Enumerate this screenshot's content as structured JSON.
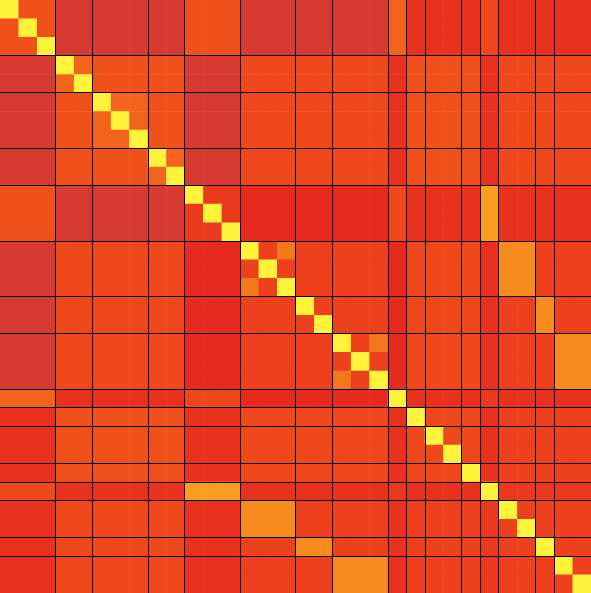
{
  "chart_data": {
    "type": "heatmap",
    "tick_labels": false,
    "zlim": [
      0,
      1
    ],
    "blocks": [
      3,
      2,
      3,
      2,
      3,
      3,
      2,
      3,
      1,
      1,
      2,
      1,
      1,
      2,
      1,
      2
    ],
    "cells": [
      [
        1,
        0.5,
        0.5,
        0.2,
        0.2,
        0.2,
        0.2,
        0.2,
        0.2,
        0.2,
        0.5,
        0.5,
        0.5,
        0.2,
        0.2,
        0.2,
        0.2,
        0.2,
        0.2,
        0.2,
        0.2,
        0.55,
        0.3,
        0.3,
        0.3,
        0.3,
        0.45,
        0.3,
        0.3,
        0.3,
        0.3,
        0.3
      ],
      [
        0.5,
        1,
        0.5,
        0.2,
        0.2,
        0.2,
        0.2,
        0.2,
        0.2,
        0.2,
        0.5,
        0.5,
        0.5,
        0.2,
        0.2,
        0.2,
        0.2,
        0.2,
        0.2,
        0.2,
        0.2,
        0.55,
        0.3,
        0.3,
        0.3,
        0.3,
        0.45,
        0.3,
        0.3,
        0.3,
        0.3,
        0.3
      ],
      [
        0.5,
        0.5,
        1,
        0.2,
        0.2,
        0.2,
        0.2,
        0.2,
        0.2,
        0.2,
        0.5,
        0.5,
        0.5,
        0.2,
        0.2,
        0.2,
        0.2,
        0.2,
        0.2,
        0.2,
        0.2,
        0.55,
        0.3,
        0.3,
        0.3,
        0.3,
        0.45,
        0.3,
        0.3,
        0.3,
        0.3,
        0.3
      ],
      [
        0.2,
        0.2,
        0.2,
        1,
        0.55,
        0.5,
        0.5,
        0.5,
        0.5,
        0.5,
        0.2,
        0.2,
        0.2,
        0.45,
        0.45,
        0.45,
        0.45,
        0.45,
        0.45,
        0.45,
        0.45,
        0.3,
        0.5,
        0.5,
        0.5,
        0.5,
        0.3,
        0.45,
        0.45,
        0.45,
        0.45,
        0.45
      ],
      [
        0.2,
        0.2,
        0.2,
        0.55,
        1,
        0.5,
        0.5,
        0.5,
        0.5,
        0.5,
        0.2,
        0.2,
        0.2,
        0.45,
        0.45,
        0.45,
        0.45,
        0.45,
        0.45,
        0.45,
        0.45,
        0.3,
        0.5,
        0.5,
        0.5,
        0.5,
        0.3,
        0.45,
        0.45,
        0.45,
        0.45,
        0.45
      ],
      [
        0.2,
        0.2,
        0.2,
        0.5,
        0.5,
        1,
        0.55,
        0.55,
        0.5,
        0.5,
        0.2,
        0.2,
        0.2,
        0.45,
        0.45,
        0.45,
        0.45,
        0.45,
        0.45,
        0.45,
        0.45,
        0.3,
        0.5,
        0.5,
        0.5,
        0.5,
        0.3,
        0.45,
        0.45,
        0.45,
        0.45,
        0.45
      ],
      [
        0.2,
        0.2,
        0.2,
        0.5,
        0.5,
        0.55,
        1,
        0.55,
        0.5,
        0.5,
        0.2,
        0.2,
        0.2,
        0.45,
        0.45,
        0.45,
        0.45,
        0.45,
        0.45,
        0.45,
        0.45,
        0.3,
        0.5,
        0.5,
        0.5,
        0.5,
        0.3,
        0.45,
        0.45,
        0.45,
        0.45,
        0.45
      ],
      [
        0.2,
        0.2,
        0.2,
        0.5,
        0.5,
        0.55,
        0.55,
        1,
        0.5,
        0.5,
        0.2,
        0.2,
        0.2,
        0.45,
        0.45,
        0.45,
        0.45,
        0.45,
        0.45,
        0.45,
        0.45,
        0.3,
        0.5,
        0.5,
        0.5,
        0.5,
        0.3,
        0.45,
        0.45,
        0.45,
        0.45,
        0.45
      ],
      [
        0.2,
        0.2,
        0.2,
        0.5,
        0.5,
        0.5,
        0.5,
        0.5,
        1,
        0.55,
        0.2,
        0.2,
        0.2,
        0.45,
        0.45,
        0.45,
        0.45,
        0.45,
        0.45,
        0.45,
        0.45,
        0.3,
        0.5,
        0.5,
        0.5,
        0.5,
        0.3,
        0.45,
        0.45,
        0.45,
        0.45,
        0.45
      ],
      [
        0.2,
        0.2,
        0.2,
        0.5,
        0.5,
        0.5,
        0.5,
        0.5,
        0.55,
        1,
        0.2,
        0.2,
        0.2,
        0.45,
        0.45,
        0.45,
        0.45,
        0.45,
        0.45,
        0.45,
        0.45,
        0.3,
        0.5,
        0.5,
        0.5,
        0.5,
        0.3,
        0.45,
        0.45,
        0.45,
        0.45,
        0.45
      ],
      [
        0.5,
        0.5,
        0.5,
        0.2,
        0.2,
        0.2,
        0.2,
        0.2,
        0.2,
        0.2,
        1,
        0.35,
        0.35,
        0.25,
        0.25,
        0.25,
        0.25,
        0.25,
        0.25,
        0.25,
        0.25,
        0.45,
        0.3,
        0.3,
        0.3,
        0.3,
        0.7,
        0.3,
        0.3,
        0.3,
        0.3,
        0.3
      ],
      [
        0.5,
        0.5,
        0.5,
        0.2,
        0.2,
        0.2,
        0.2,
        0.2,
        0.2,
        0.2,
        0.35,
        1,
        0.35,
        0.25,
        0.25,
        0.25,
        0.25,
        0.25,
        0.25,
        0.25,
        0.25,
        0.45,
        0.3,
        0.3,
        0.3,
        0.3,
        0.7,
        0.3,
        0.3,
        0.3,
        0.3,
        0.3
      ],
      [
        0.5,
        0.5,
        0.5,
        0.2,
        0.2,
        0.2,
        0.2,
        0.2,
        0.2,
        0.2,
        0.35,
        0.35,
        1,
        0.25,
        0.25,
        0.25,
        0.25,
        0.25,
        0.25,
        0.25,
        0.25,
        0.45,
        0.3,
        0.3,
        0.3,
        0.3,
        0.7,
        0.3,
        0.3,
        0.3,
        0.3,
        0.3
      ],
      [
        0.2,
        0.2,
        0.2,
        0.45,
        0.45,
        0.45,
        0.45,
        0.45,
        0.45,
        0.45,
        0.25,
        0.25,
        0.25,
        1,
        0.4,
        0.6,
        0.4,
        0.4,
        0.4,
        0.4,
        0.4,
        0.25,
        0.45,
        0.45,
        0.45,
        0.45,
        0.3,
        0.65,
        0.65,
        0.4,
        0.4,
        0.4
      ],
      [
        0.2,
        0.2,
        0.2,
        0.45,
        0.45,
        0.45,
        0.45,
        0.45,
        0.45,
        0.45,
        0.25,
        0.25,
        0.25,
        0.4,
        1,
        0.4,
        0.4,
        0.4,
        0.4,
        0.4,
        0.4,
        0.25,
        0.45,
        0.45,
        0.45,
        0.45,
        0.3,
        0.65,
        0.65,
        0.4,
        0.4,
        0.4
      ],
      [
        0.2,
        0.2,
        0.2,
        0.45,
        0.45,
        0.45,
        0.45,
        0.45,
        0.45,
        0.45,
        0.25,
        0.25,
        0.25,
        0.6,
        0.4,
        1,
        0.4,
        0.4,
        0.4,
        0.4,
        0.4,
        0.25,
        0.45,
        0.45,
        0.45,
        0.45,
        0.3,
        0.65,
        0.65,
        0.4,
        0.4,
        0.4
      ],
      [
        0.2,
        0.2,
        0.2,
        0.45,
        0.45,
        0.45,
        0.45,
        0.45,
        0.45,
        0.45,
        0.25,
        0.25,
        0.25,
        0.4,
        0.4,
        0.4,
        1,
        0.4,
        0.4,
        0.4,
        0.4,
        0.25,
        0.45,
        0.45,
        0.45,
        0.45,
        0.3,
        0.4,
        0.4,
        0.65,
        0.4,
        0.4
      ],
      [
        0.2,
        0.2,
        0.2,
        0.45,
        0.45,
        0.45,
        0.45,
        0.45,
        0.45,
        0.45,
        0.25,
        0.25,
        0.25,
        0.4,
        0.4,
        0.4,
        0.4,
        1,
        0.4,
        0.4,
        0.4,
        0.25,
        0.45,
        0.45,
        0.45,
        0.45,
        0.3,
        0.4,
        0.4,
        0.65,
        0.4,
        0.4
      ],
      [
        0.2,
        0.2,
        0.2,
        0.45,
        0.45,
        0.45,
        0.45,
        0.45,
        0.45,
        0.45,
        0.25,
        0.25,
        0.25,
        0.4,
        0.4,
        0.4,
        0.4,
        0.4,
        1,
        0.4,
        0.6,
        0.25,
        0.45,
        0.45,
        0.45,
        0.45,
        0.3,
        0.4,
        0.4,
        0.4,
        0.65,
        0.65
      ],
      [
        0.2,
        0.2,
        0.2,
        0.45,
        0.45,
        0.45,
        0.45,
        0.45,
        0.45,
        0.45,
        0.25,
        0.25,
        0.25,
        0.4,
        0.4,
        0.4,
        0.4,
        0.4,
        0.4,
        1,
        0.4,
        0.25,
        0.45,
        0.45,
        0.45,
        0.45,
        0.3,
        0.4,
        0.4,
        0.4,
        0.65,
        0.65
      ],
      [
        0.2,
        0.2,
        0.2,
        0.45,
        0.45,
        0.45,
        0.45,
        0.45,
        0.45,
        0.45,
        0.25,
        0.25,
        0.25,
        0.4,
        0.4,
        0.4,
        0.4,
        0.4,
        0.6,
        0.4,
        1,
        0.25,
        0.45,
        0.45,
        0.45,
        0.45,
        0.3,
        0.4,
        0.4,
        0.4,
        0.65,
        0.65
      ],
      [
        0.55,
        0.55,
        0.55,
        0.3,
        0.3,
        0.3,
        0.3,
        0.3,
        0.3,
        0.3,
        0.45,
        0.45,
        0.45,
        0.25,
        0.25,
        0.25,
        0.25,
        0.25,
        0.25,
        0.25,
        0.25,
        1,
        0.3,
        0.3,
        0.3,
        0.3,
        0.35,
        0.3,
        0.3,
        0.3,
        0.3,
        0.3
      ],
      [
        0.3,
        0.3,
        0.3,
        0.5,
        0.5,
        0.5,
        0.5,
        0.5,
        0.5,
        0.5,
        0.3,
        0.3,
        0.3,
        0.45,
        0.45,
        0.45,
        0.45,
        0.45,
        0.45,
        0.45,
        0.45,
        0.3,
        1,
        0.45,
        0.45,
        0.45,
        0.3,
        0.4,
        0.4,
        0.4,
        0.4,
        0.4
      ],
      [
        0.3,
        0.3,
        0.3,
        0.5,
        0.5,
        0.5,
        0.5,
        0.5,
        0.5,
        0.5,
        0.3,
        0.3,
        0.3,
        0.45,
        0.45,
        0.45,
        0.45,
        0.45,
        0.45,
        0.45,
        0.45,
        0.3,
        0.45,
        1,
        0.45,
        0.45,
        0.3,
        0.4,
        0.4,
        0.4,
        0.4,
        0.4
      ],
      [
        0.3,
        0.3,
        0.3,
        0.5,
        0.5,
        0.5,
        0.5,
        0.5,
        0.5,
        0.5,
        0.3,
        0.3,
        0.3,
        0.45,
        0.45,
        0.45,
        0.45,
        0.45,
        0.45,
        0.45,
        0.45,
        0.3,
        0.45,
        0.45,
        1,
        0.45,
        0.3,
        0.4,
        0.4,
        0.4,
        0.4,
        0.4
      ],
      [
        0.3,
        0.3,
        0.3,
        0.5,
        0.5,
        0.5,
        0.5,
        0.5,
        0.5,
        0.5,
        0.3,
        0.3,
        0.3,
        0.45,
        0.45,
        0.45,
        0.45,
        0.45,
        0.45,
        0.45,
        0.45,
        0.3,
        0.45,
        0.45,
        0.45,
        1,
        0.3,
        0.4,
        0.4,
        0.4,
        0.4,
        0.4
      ],
      [
        0.45,
        0.45,
        0.45,
        0.3,
        0.3,
        0.3,
        0.3,
        0.3,
        0.3,
        0.3,
        0.7,
        0.7,
        0.7,
        0.3,
        0.3,
        0.3,
        0.3,
        0.3,
        0.3,
        0.3,
        0.3,
        0.35,
        0.3,
        0.3,
        0.3,
        0.3,
        1,
        0.35,
        0.35,
        0.35,
        0.35,
        0.35
      ],
      [
        0.3,
        0.3,
        0.3,
        0.45,
        0.45,
        0.45,
        0.45,
        0.45,
        0.45,
        0.45,
        0.3,
        0.3,
        0.3,
        0.65,
        0.65,
        0.65,
        0.4,
        0.4,
        0.4,
        0.4,
        0.4,
        0.3,
        0.4,
        0.4,
        0.4,
        0.4,
        0.35,
        1,
        0.4,
        0.4,
        0.4,
        0.4
      ],
      [
        0.3,
        0.3,
        0.3,
        0.45,
        0.45,
        0.45,
        0.45,
        0.45,
        0.45,
        0.45,
        0.3,
        0.3,
        0.3,
        0.65,
        0.65,
        0.65,
        0.4,
        0.4,
        0.4,
        0.4,
        0.4,
        0.3,
        0.4,
        0.4,
        0.4,
        0.4,
        0.35,
        0.4,
        1,
        0.4,
        0.4,
        0.4
      ],
      [
        0.3,
        0.3,
        0.3,
        0.45,
        0.45,
        0.45,
        0.45,
        0.45,
        0.45,
        0.45,
        0.3,
        0.3,
        0.3,
        0.4,
        0.4,
        0.4,
        0.65,
        0.65,
        0.4,
        0.4,
        0.4,
        0.3,
        0.4,
        0.4,
        0.4,
        0.4,
        0.35,
        0.4,
        0.4,
        1,
        0.4,
        0.4
      ],
      [
        0.3,
        0.3,
        0.3,
        0.45,
        0.45,
        0.45,
        0.45,
        0.45,
        0.45,
        0.45,
        0.3,
        0.3,
        0.3,
        0.4,
        0.4,
        0.4,
        0.4,
        0.4,
        0.65,
        0.65,
        0.65,
        0.3,
        0.4,
        0.4,
        0.4,
        0.4,
        0.35,
        0.4,
        0.4,
        0.4,
        1,
        0.4
      ],
      [
        0.3,
        0.3,
        0.3,
        0.45,
        0.45,
        0.45,
        0.45,
        0.45,
        0.45,
        0.45,
        0.3,
        0.3,
        0.3,
        0.4,
        0.4,
        0.4,
        0.4,
        0.4,
        0.65,
        0.65,
        0.65,
        0.3,
        0.4,
        0.4,
        0.4,
        0.4,
        0.35,
        0.4,
        0.4,
        0.4,
        0.4,
        1
      ]
    ]
  }
}
